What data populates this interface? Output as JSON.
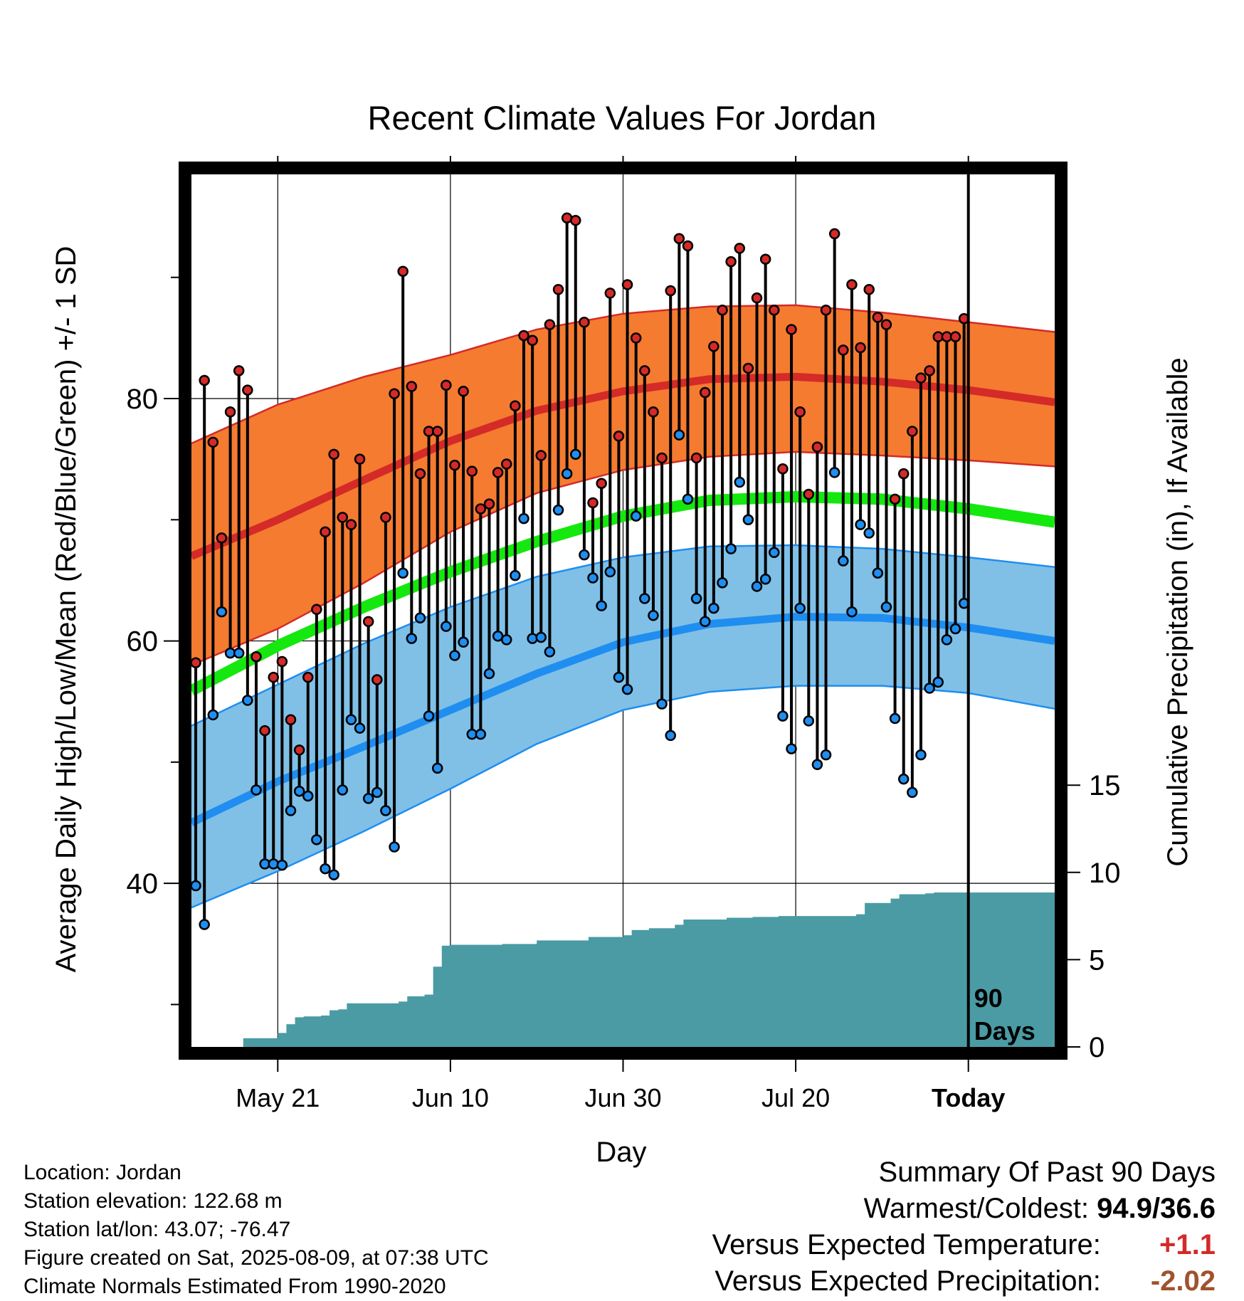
{
  "chart_data": {
    "type": "line",
    "title": "Recent Climate Values For Jordan",
    "xlabel": "Day",
    "ylabel": "Average Daily High/Low/Mean (Red/Blue/Green) +/- 1 SD",
    "y2label": "Cumulative Precipitation (in), If Available",
    "xlim": [
      "2025-05-11",
      "2025-08-19"
    ],
    "ylim": [
      26.5,
      98.5
    ],
    "y2lim": [
      0,
      50
    ],
    "y_ticks": [
      40,
      60,
      80
    ],
    "y2_ticks": [
      0,
      5,
      10,
      15
    ],
    "x_tick_labels": [
      "May 21",
      "Jun 10",
      "Jun 30",
      "Jul 20",
      "Today"
    ],
    "x_tick_dates": [
      "2025-05-21",
      "2025-06-10",
      "2025-06-30",
      "2025-07-20",
      "2025-08-09"
    ],
    "today_marker": "2025-08-09",
    "today_label": "90 Days",
    "grid": true,
    "colors": {
      "high_band": "#f47b30",
      "high_line": "#d42a28",
      "low_band": "#80c0e6",
      "low_line": "#1f8ef0",
      "mean_line": "#15e80e",
      "precip": "#4a9ba4",
      "high_dot": "#d42a28",
      "low_dot": "#1f8ef0"
    },
    "normals": {
      "dates": [
        "2025-05-11",
        "2025-05-21",
        "2025-05-31",
        "2025-06-10",
        "2025-06-20",
        "2025-06-30",
        "2025-07-10",
        "2025-07-20",
        "2025-07-30",
        "2025-08-09",
        "2025-08-19"
      ],
      "high_mean": [
        67.0,
        70.0,
        73.3,
        76.5,
        79.0,
        80.6,
        81.6,
        81.8,
        81.4,
        80.7,
        79.7
      ],
      "high_plus_sd": [
        76.3,
        79.5,
        81.8,
        83.6,
        85.7,
        87.0,
        87.6,
        87.7,
        87.1,
        86.3,
        85.5
      ],
      "high_minus_sd": [
        58.0,
        61.0,
        64.8,
        69.0,
        72.2,
        74.1,
        75.2,
        75.6,
        75.3,
        74.9,
        74.4
      ],
      "low_mean": [
        45.0,
        48.4,
        51.3,
        54.3,
        57.3,
        59.9,
        61.4,
        62.0,
        61.9,
        61.1,
        60.0
      ],
      "low_plus_sd": [
        53.0,
        56.4,
        59.8,
        62.8,
        65.3,
        66.9,
        67.8,
        67.9,
        67.6,
        66.9,
        66.1
      ],
      "low_minus_sd": [
        38.0,
        41.0,
        44.3,
        47.8,
        51.5,
        54.3,
        55.8,
        56.3,
        56.3,
        55.7,
        54.4
      ],
      "mean": [
        55.9,
        59.6,
        62.8,
        65.7,
        68.2,
        70.3,
        71.6,
        71.9,
        71.7,
        70.9,
        69.8
      ]
    },
    "daily": {
      "start_date": "2025-05-11",
      "high": [
        58.2,
        81.5,
        76.4,
        68.5,
        78.9,
        82.3,
        80.7,
        58.7,
        52.6,
        57.0,
        58.3,
        53.5,
        51.0,
        57.0,
        62.6,
        69.0,
        75.4,
        70.2,
        69.6,
        75.0,
        61.6,
        56.8,
        70.2,
        80.4,
        90.5,
        81.0,
        73.8,
        77.3,
        77.3,
        81.1,
        74.5,
        80.6,
        74.0,
        70.9,
        71.3,
        73.9,
        74.6,
        79.4,
        85.2,
        84.8,
        75.3,
        86.1,
        89.0,
        94.9,
        94.7,
        86.3,
        71.4,
        73.0,
        88.7,
        76.9,
        89.4,
        85.0,
        82.3,
        78.9,
        75.1,
        88.9,
        93.2,
        92.6,
        75.1,
        80.5,
        84.3,
        87.3,
        91.3,
        92.4,
        82.5,
        88.3,
        91.5,
        87.3,
        74.2,
        85.7,
        78.9,
        72.1,
        76.0,
        87.3,
        93.6,
        84.0,
        89.4,
        84.2,
        89.0,
        86.7,
        86.1,
        71.7,
        73.8,
        77.3,
        81.7,
        82.3,
        85.1,
        85.1,
        85.1,
        86.6
      ],
      "low": [
        39.8,
        36.6,
        53.9,
        62.4,
        59.0,
        59.0,
        55.1,
        47.7,
        41.6,
        41.6,
        41.5,
        46.0,
        47.6,
        47.2,
        43.6,
        41.2,
        40.7,
        47.7,
        53.5,
        52.8,
        47.0,
        47.5,
        46.0,
        43.0,
        65.6,
        60.2,
        61.9,
        53.8,
        49.5,
        61.2,
        58.8,
        59.9,
        52.3,
        52.3,
        57.3,
        60.4,
        60.1,
        65.4,
        70.1,
        60.2,
        60.3,
        59.1,
        70.8,
        73.8,
        75.4,
        67.1,
        65.2,
        62.9,
        65.7,
        57.0,
        56.0,
        70.3,
        63.5,
        62.1,
        54.8,
        52.2,
        77.0,
        71.7,
        63.5,
        61.6,
        62.7,
        64.8,
        67.6,
        73.1,
        70.0,
        64.5,
        65.1,
        67.3,
        53.8,
        51.1,
        62.7,
        53.4,
        49.8,
        50.6,
        73.9,
        66.6,
        62.4,
        69.6,
        68.9,
        65.6,
        62.8,
        53.6,
        48.6,
        47.5,
        50.6,
        56.1,
        56.6,
        60.1,
        61.0,
        63.1
      ]
    },
    "precipitation": {
      "dates": [
        "2025-05-11",
        "2025-05-16",
        "2025-05-17",
        "2025-05-20",
        "2025-05-21",
        "2025-05-22",
        "2025-05-23",
        "2025-05-24",
        "2025-05-26",
        "2025-05-27",
        "2025-05-28",
        "2025-05-29",
        "2025-05-31",
        "2025-06-01",
        "2025-06-04",
        "2025-06-05",
        "2025-06-07",
        "2025-06-08",
        "2025-06-09",
        "2025-06-10",
        "2025-06-16",
        "2025-06-20",
        "2025-06-26",
        "2025-06-30",
        "2025-07-01",
        "2025-07-03",
        "2025-07-06",
        "2025-07-07",
        "2025-07-12",
        "2025-07-15",
        "2025-07-18",
        "2025-07-27",
        "2025-07-28",
        "2025-07-31",
        "2025-08-01",
        "2025-08-04",
        "2025-08-05",
        "2025-08-09",
        "2025-08-19"
      ],
      "values": [
        0.0,
        0.0,
        0.5,
        0.5,
        0.8,
        1.3,
        1.7,
        1.75,
        1.8,
        2.1,
        2.15,
        2.5,
        2.5,
        2.5,
        2.6,
        2.9,
        3.0,
        4.6,
        5.8,
        5.85,
        5.9,
        6.1,
        6.3,
        6.4,
        6.7,
        6.8,
        7.0,
        7.3,
        7.4,
        7.45,
        7.5,
        7.6,
        8.25,
        8.5,
        8.75,
        8.8,
        8.85,
        8.85,
        8.85
      ]
    }
  },
  "footer": {
    "location": "Location: Jordan",
    "elevation": "Station elevation: 122.68 m",
    "latlon": "Station lat/lon: 43.07; -76.47",
    "created": "Figure created on Sat, 2025-08-09, at 07:38 UTC",
    "normals": "Climate Normals Estimated From 1990-2020"
  },
  "summary": {
    "title": "Summary Of Past 90 Days",
    "warm_cold_label": "Warmest/Coldest:",
    "warm_cold_value": "94.9/36.6",
    "temp_label": "Versus Expected Temperature:",
    "temp_value": "+1.1",
    "temp_color": "#d42a28",
    "precip_label": "Versus Expected Precipitation:",
    "precip_value": "-2.02",
    "precip_color": "#a0522d"
  }
}
